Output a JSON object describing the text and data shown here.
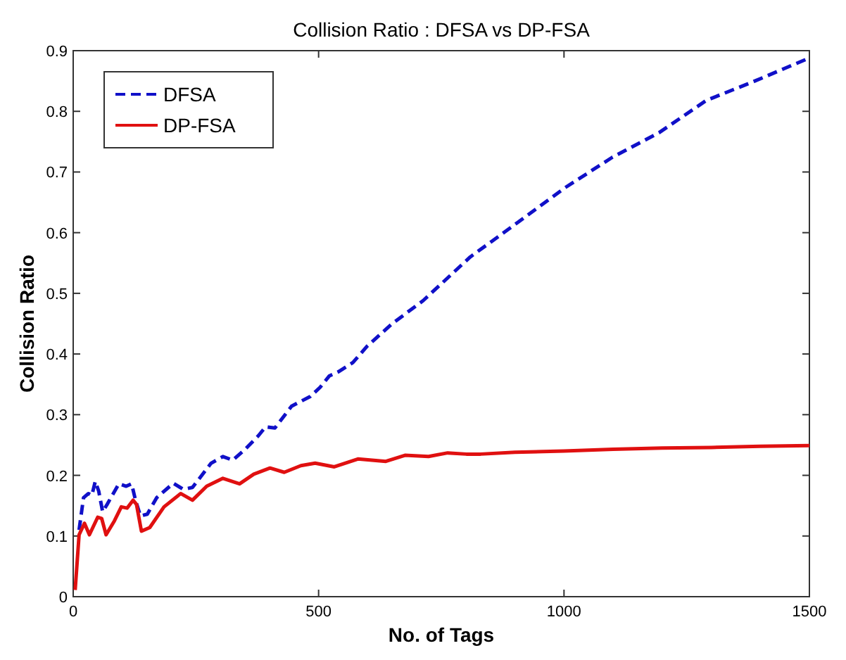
{
  "chart_data": {
    "type": "line",
    "title": "Collision Ratio : DFSA vs DP-FSA",
    "xlabel": "No. of Tags",
    "ylabel": "Collision Ratio",
    "xlim": [
      0,
      1500
    ],
    "ylim": [
      0,
      0.9
    ],
    "xticks": [
      0,
      500,
      1000,
      1500
    ],
    "yticks": [
      0,
      0.1,
      0.2,
      0.3,
      0.4,
      0.5,
      0.6,
      0.7,
      0.8,
      0.9
    ],
    "grid": false,
    "legend": "top left",
    "marker": "none",
    "series": [
      {
        "name": "DFSA",
        "color": "#1010c8",
        "line_style": "dashed",
        "x": [
          12,
          21,
          31,
          38,
          45,
          52,
          60,
          69,
          93,
          108,
          119,
          127,
          137,
          151,
          170,
          204,
          224,
          243,
          281,
          305,
          325,
          349,
          377,
          392,
          411,
          445,
          483,
          503,
          522,
          541,
          570,
          599,
          650,
          713,
          809,
          906,
          1002,
          1098,
          1194,
          1290,
          1386,
          1500
        ],
        "values": [
          0.11,
          0.163,
          0.17,
          0.167,
          0.19,
          0.174,
          0.14,
          0.152,
          0.186,
          0.182,
          0.186,
          0.159,
          0.133,
          0.136,
          0.163,
          0.187,
          0.177,
          0.18,
          0.22,
          0.231,
          0.225,
          0.242,
          0.265,
          0.28,
          0.278,
          0.314,
          0.33,
          0.345,
          0.364,
          0.371,
          0.386,
          0.413,
          0.45,
          0.488,
          0.56,
          0.617,
          0.674,
          0.724,
          0.765,
          0.818,
          0.849,
          0.888
        ]
      },
      {
        "name": "DP-FSA",
        "color": "#e01010",
        "line_style": "solid",
        "x": [
          4,
          12,
          23,
          33,
          50,
          58,
          67,
          84,
          98,
          110,
          122,
          129,
          139,
          156,
          185,
          219,
          243,
          272,
          305,
          339,
          368,
          401,
          430,
          464,
          493,
          532,
          580,
          637,
          676,
          724,
          763,
          801,
          830,
          900,
          1000,
          1100,
          1200,
          1300,
          1400,
          1500
        ],
        "values": [
          0.011,
          0.102,
          0.121,
          0.102,
          0.131,
          0.129,
          0.102,
          0.125,
          0.148,
          0.146,
          0.159,
          0.152,
          0.108,
          0.114,
          0.148,
          0.17,
          0.159,
          0.182,
          0.195,
          0.186,
          0.202,
          0.212,
          0.205,
          0.216,
          0.22,
          0.214,
          0.227,
          0.223,
          0.233,
          0.231,
          0.237,
          0.235,
          0.235,
          0.238,
          0.24,
          0.243,
          0.245,
          0.246,
          0.248,
          0.249
        ]
      }
    ]
  }
}
